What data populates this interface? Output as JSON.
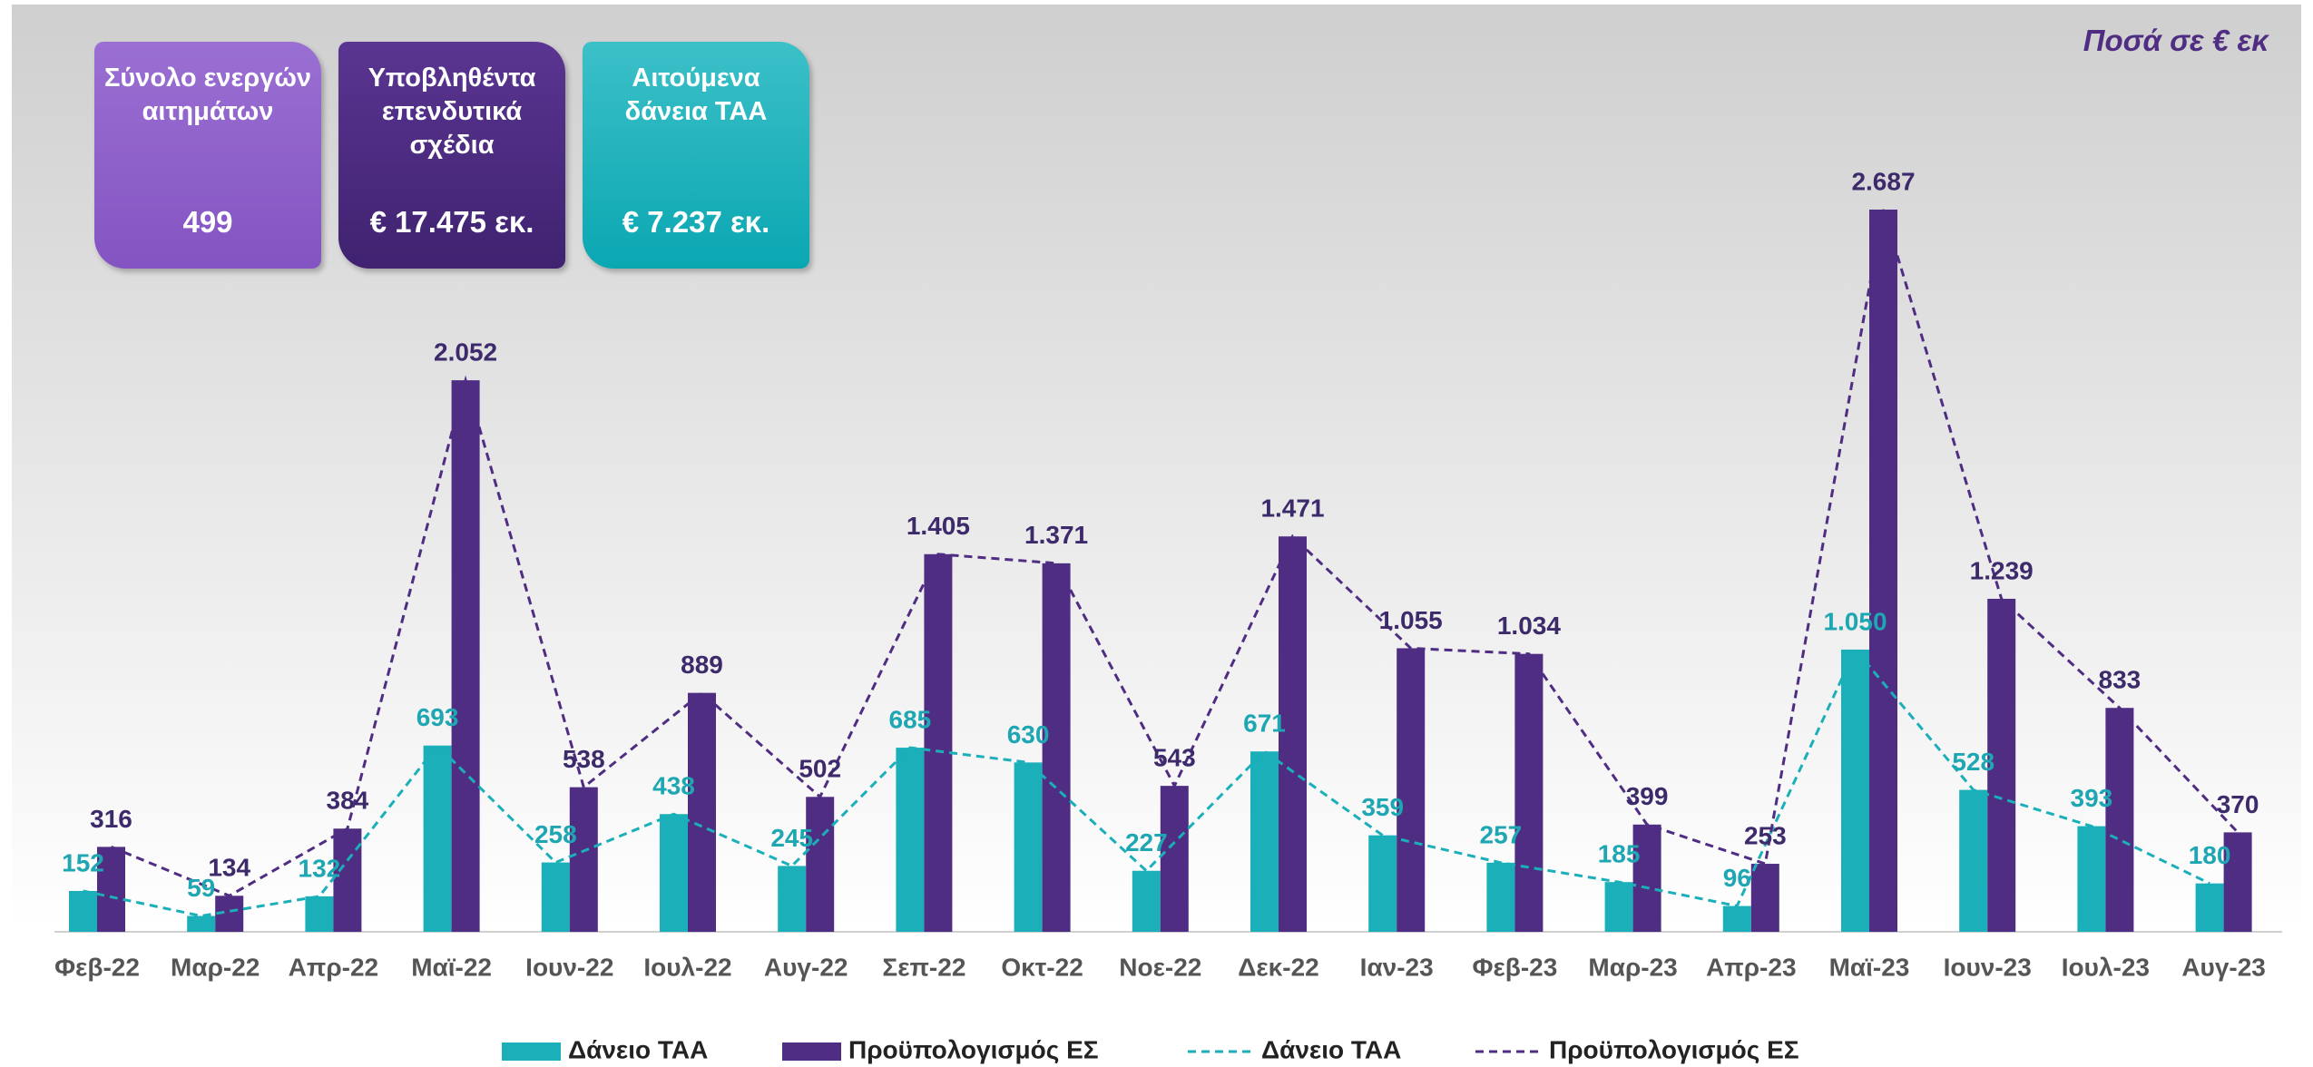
{
  "note": "Ποσά σε € εκ",
  "cards": [
    {
      "title": "Σύνολο ενεργών αιτημάτων",
      "value": "499"
    },
    {
      "title": "Υποβληθέντα επενδυτικά σχέδια",
      "value": "€ 17.475 εκ."
    },
    {
      "title": "Αιτούμενα δάνεια ΤΑΑ",
      "value": "€ 7.237 εκ."
    }
  ],
  "chart_data": {
    "type": "bar",
    "categories": [
      "Φεβ-22",
      "Μαρ-22",
      "Απρ-22",
      "Μαϊ-22",
      "Ιουν-22",
      "Ιουλ-22",
      "Αυγ-22",
      "Σεπ-22",
      "Οκτ-22",
      "Νοε-22",
      "Δεκ-22",
      "Ιαν-23",
      "Φεβ-23",
      "Μαρ-23",
      "Απρ-23",
      "Μαϊ-23",
      "Ιουν-23",
      "Ιουλ-23",
      "Αυγ-23"
    ],
    "series": [
      {
        "name": "Δάνειο ΤΑΑ",
        "kind": "bar",
        "color": "#1aafb9",
        "values": [
          152,
          59,
          132,
          693,
          258,
          438,
          245,
          685,
          630,
          227,
          671,
          359,
          257,
          185,
          96,
          1050,
          528,
          393,
          180
        ],
        "value_labels": [
          "152",
          "59",
          "132",
          "693",
          "258",
          "438",
          "245",
          "685",
          "630",
          "227",
          "671",
          "359",
          "257",
          "185",
          "96",
          "1.050",
          "528",
          "393",
          "180"
        ]
      },
      {
        "name": "Προϋπολογισμός ΕΣ",
        "kind": "bar",
        "color": "#4f2d82",
        "values": [
          316,
          134,
          384,
          2052,
          538,
          889,
          502,
          1405,
          1371,
          543,
          1471,
          1055,
          1034,
          399,
          253,
          2687,
          1239,
          833,
          370
        ],
        "value_labels": [
          "316",
          "134",
          "384",
          "2.052",
          "538",
          "889",
          "502",
          "1.405",
          "1.371",
          "543",
          "1.471",
          "1.055",
          "1.034",
          "399",
          "253",
          "2.687",
          "1.239",
          "833",
          "370"
        ]
      },
      {
        "name": "Δάνειο ΤΑΑ",
        "kind": "line",
        "color": "#1aafb9",
        "values": [
          152,
          59,
          132,
          693,
          258,
          438,
          245,
          685,
          630,
          227,
          671,
          359,
          257,
          185,
          96,
          1050,
          528,
          393,
          180
        ]
      },
      {
        "name": "Προϋπολογισμός ΕΣ",
        "kind": "line",
        "color": "#4f2d82",
        "values": [
          316,
          134,
          384,
          2052,
          538,
          889,
          502,
          1405,
          1371,
          543,
          1471,
          1055,
          1034,
          399,
          253,
          2687,
          1239,
          833,
          370
        ]
      }
    ]
  }
}
